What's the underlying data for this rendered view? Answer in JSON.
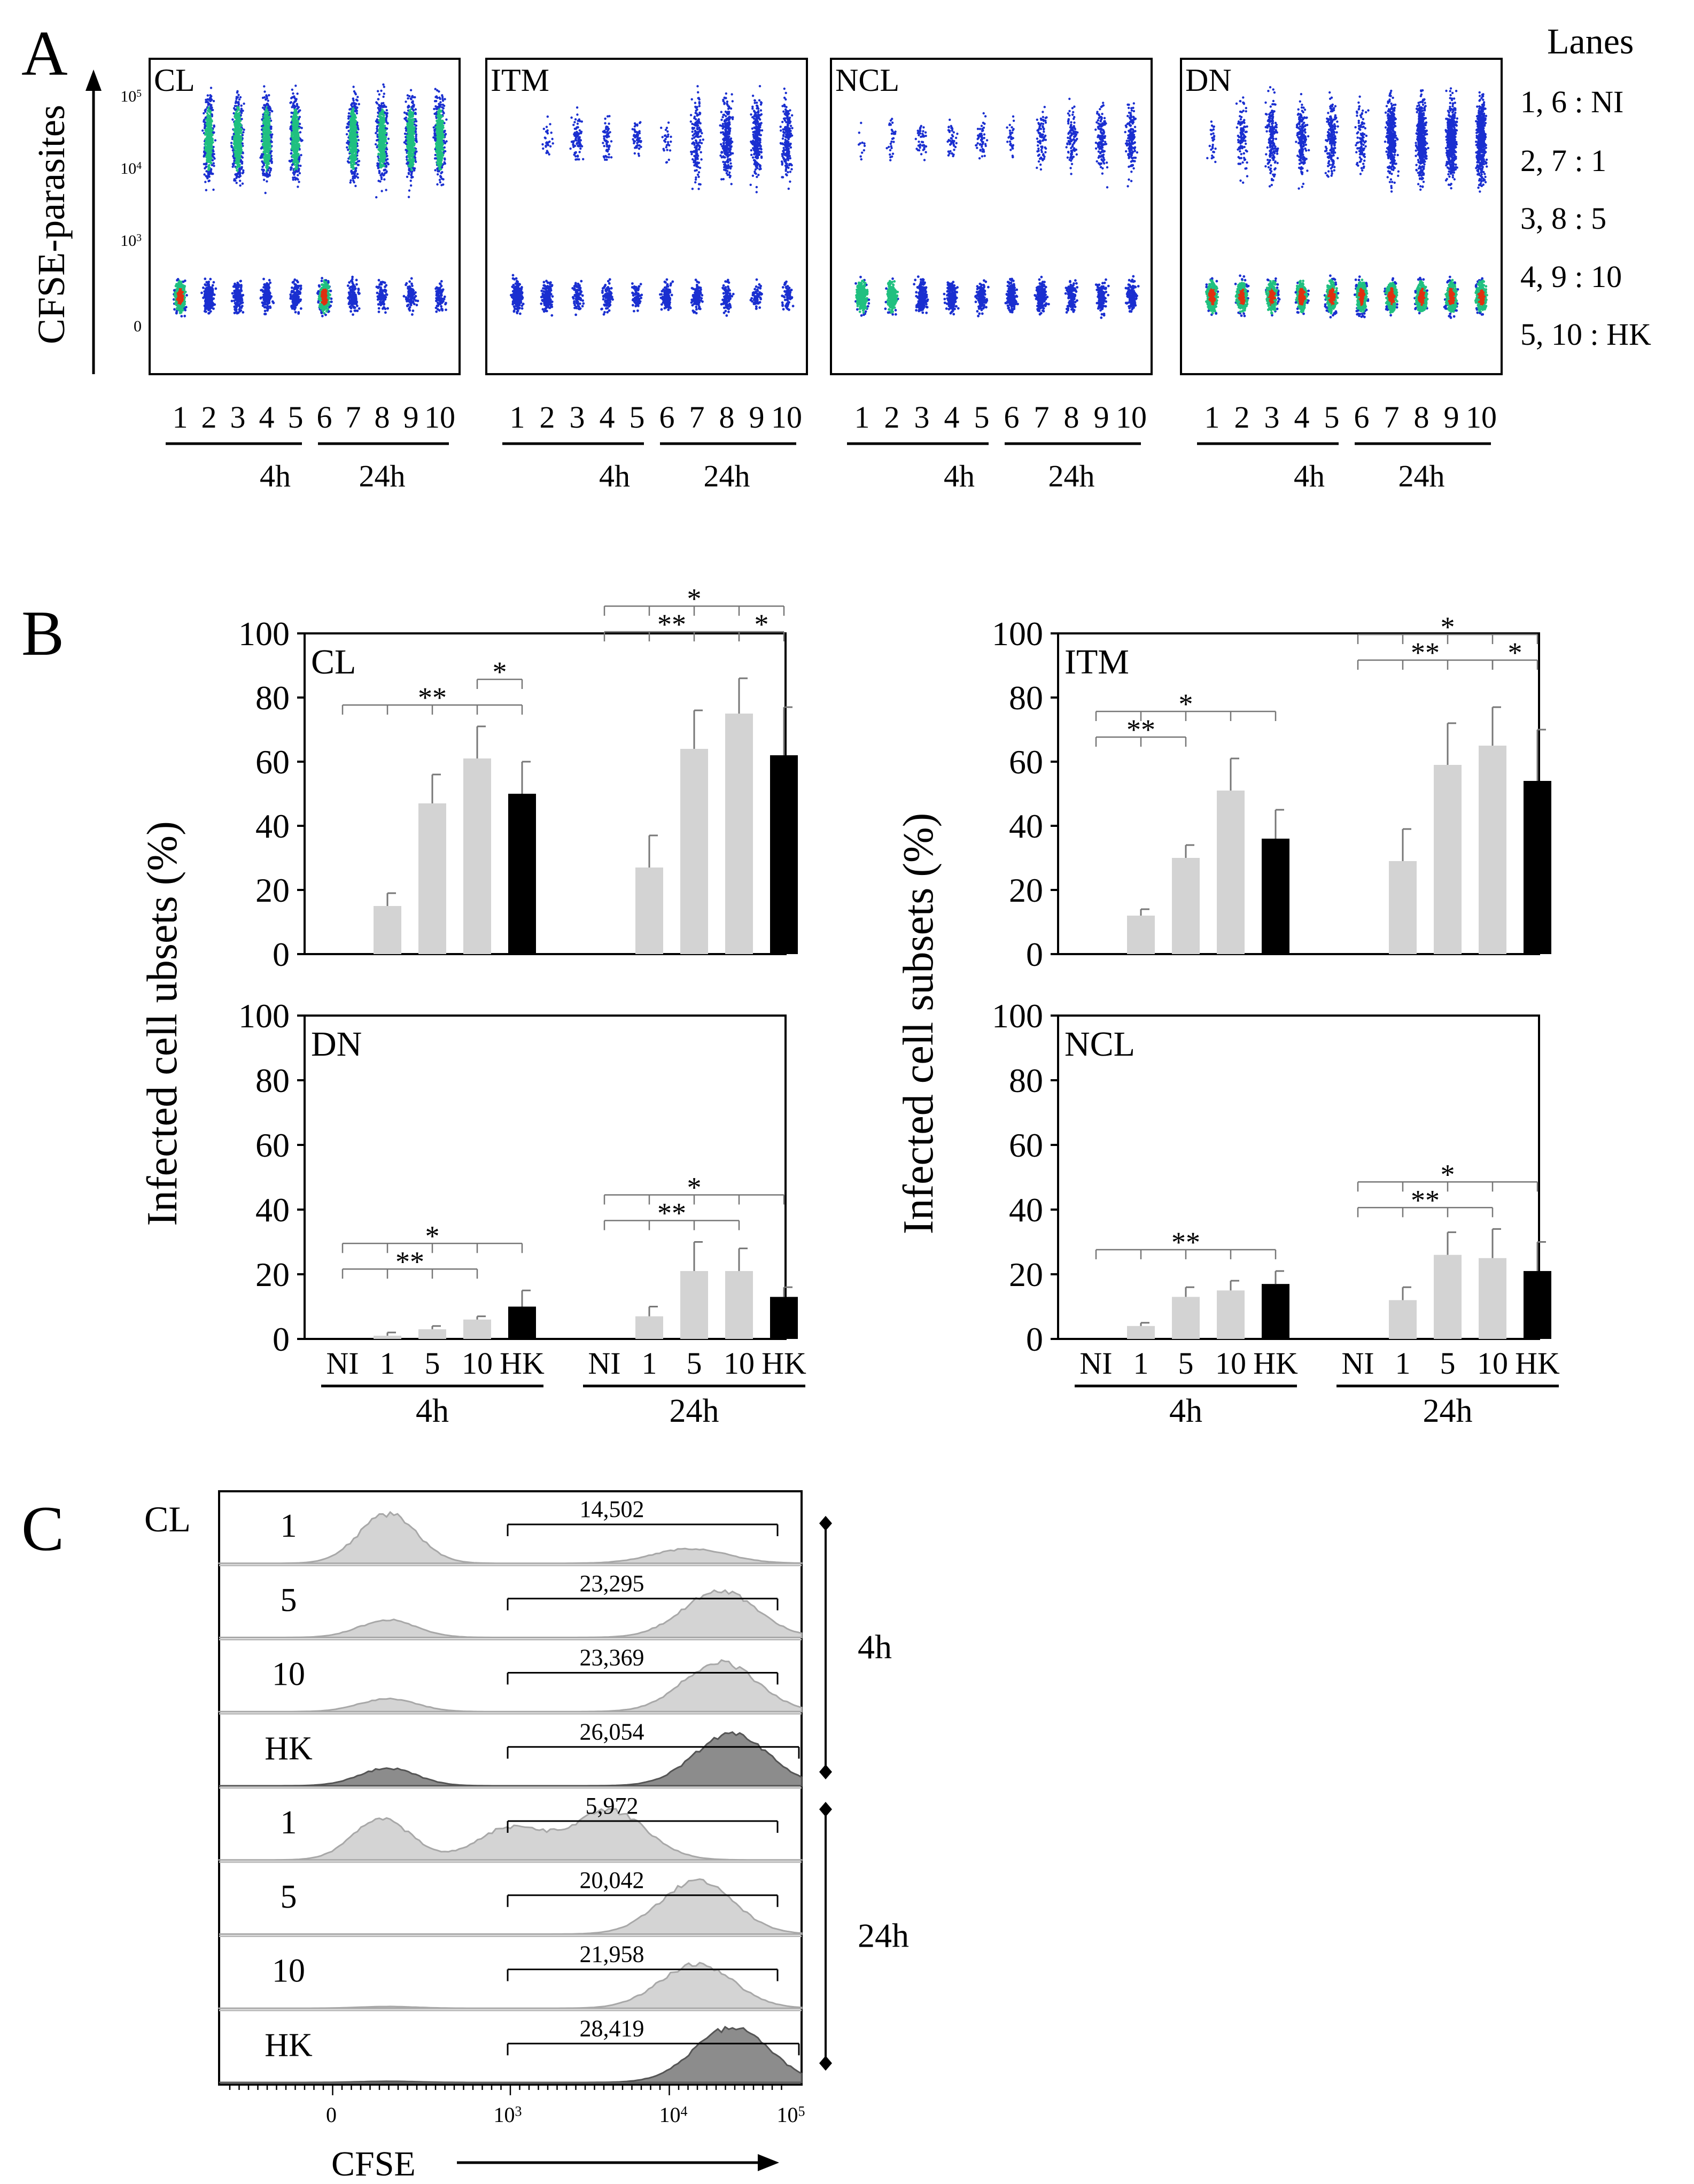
{
  "panel_letters": {
    "a": "A",
    "b": "B",
    "c": "C"
  },
  "chart_data": [
    {
      "id": "A",
      "type": "scatter",
      "description_axis": "flow cytometry dot plots",
      "ylabel": "CFSE-parasites",
      "y_tick_labels": [
        "0",
        "10",
        "10",
        "10"
      ],
      "y_tick_exponents": [
        "",
        "3",
        "4",
        "5"
      ],
      "subplots": [
        {
          "title": "CL",
          "lane_labels": [
            "1",
            "2",
            "3",
            "4",
            "5",
            "6",
            "7",
            "8",
            "9",
            "10"
          ]
        },
        {
          "title": "ITM",
          "lane_labels": [
            "1",
            "2",
            "3",
            "4",
            "5",
            "6",
            "7",
            "8",
            "9",
            "10"
          ]
        },
        {
          "title": "NCL",
          "lane_labels": [
            "1",
            "2",
            "3",
            "4",
            "5",
            "6",
            "7",
            "8",
            "9",
            "10"
          ]
        },
        {
          "title": "DN",
          "lane_labels": [
            "1",
            "2",
            "3",
            "4",
            "5",
            "6",
            "7",
            "8",
            "9",
            "10"
          ]
        }
      ],
      "group_labels": [
        "4h",
        "24h"
      ],
      "legend": {
        "title": "Lanes",
        "entries": [
          "1, 6 : NI",
          "2, 7 : 1",
          "3, 8 : 5",
          "4, 9 : 10",
          "5, 10 : HK"
        ]
      }
    },
    {
      "id": "B",
      "type": "bar",
      "ylim": [
        0,
        100
      ],
      "y_ticks": [
        "0",
        "20",
        "40",
        "60",
        "80",
        "100"
      ],
      "categories": [
        "NI",
        "1",
        "5",
        "10",
        "HK"
      ],
      "group_labels": [
        "4h",
        "24h"
      ],
      "ylabel_left": "Infected cell ubsets (%)",
      "ylabel_right": "Infected cell subsets (%)",
      "colors": {
        "dose": "#d3d3d3",
        "hk": "#000000"
      },
      "subplots": [
        {
          "title": "CL",
          "series": [
            {
              "name": "4h",
              "values": [
                0,
                15,
                47,
                61,
                50
              ],
              "errors": [
                0,
                4,
                9,
                10,
                10
              ]
            },
            {
              "name": "24h",
              "values": [
                0,
                27,
                64,
                75,
                62
              ],
              "errors": [
                0,
                10,
                12,
                11,
                15
              ]
            }
          ],
          "annotations": {
            "4h": [
              {
                "label": "**",
                "from": 0,
                "to": 4,
                "level": 0
              },
              {
                "label": "*",
                "from": 3,
                "to": 4,
                "level": 1
              }
            ],
            "24h": [
              {
                "label": "*",
                "from": 0,
                "to": 4,
                "level": 2
              },
              {
                "label": "**",
                "from": 0,
                "to": 3,
                "level": 1
              },
              {
                "label": "*",
                "from": 3,
                "to": 4,
                "level": 1
              }
            ]
          }
        },
        {
          "title": "ITM",
          "series": [
            {
              "name": "4h",
              "values": [
                0,
                12,
                30,
                51,
                36
              ],
              "errors": [
                0,
                2,
                4,
                10,
                9
              ]
            },
            {
              "name": "24h",
              "values": [
                0,
                29,
                59,
                65,
                54
              ],
              "errors": [
                0,
                10,
                13,
                12,
                16
              ]
            }
          ],
          "annotations": {
            "4h": [
              {
                "label": "*",
                "from": 0,
                "to": 4,
                "level": 1
              },
              {
                "label": "**",
                "from": 0,
                "to": 2,
                "level": 0
              }
            ],
            "24h": [
              {
                "label": "*",
                "from": 0,
                "to": 4,
                "level": 2
              },
              {
                "label": "**",
                "from": 0,
                "to": 3,
                "level": 1
              },
              {
                "label": "*",
                "from": 3,
                "to": 4,
                "level": 1
              }
            ]
          }
        },
        {
          "title": "DN",
          "series": [
            {
              "name": "4h",
              "values": [
                0,
                1,
                3,
                6,
                10
              ],
              "errors": [
                0,
                1,
                1,
                1,
                5
              ]
            },
            {
              "name": "24h",
              "values": [
                0,
                7,
                21,
                21,
                13
              ],
              "errors": [
                0,
                3,
                9,
                7,
                3
              ]
            }
          ],
          "annotations": {
            "4h": [
              {
                "label": "*",
                "from": 0,
                "to": 4,
                "level": 1
              },
              {
                "label": "**",
                "from": 0,
                "to": 3,
                "level": 0
              }
            ],
            "24h": [
              {
                "label": "*",
                "from": 0,
                "to": 4,
                "level": 1
              },
              {
                "label": "**",
                "from": 0,
                "to": 3,
                "level": 0
              }
            ]
          }
        },
        {
          "title": "NCL",
          "series": [
            {
              "name": "4h",
              "values": [
                0,
                4,
                13,
                15,
                17
              ],
              "errors": [
                0,
                1,
                3,
                3,
                4
              ]
            },
            {
              "name": "24h",
              "values": [
                0,
                12,
                26,
                25,
                21
              ],
              "errors": [
                0,
                4,
                7,
                9,
                9
              ]
            }
          ],
          "annotations": {
            "4h": [
              {
                "label": "**",
                "from": 0,
                "to": 4,
                "level": 0
              }
            ],
            "24h": [
              {
                "label": "*",
                "from": 0,
                "to": 4,
                "level": 1
              },
              {
                "label": "**",
                "from": 0,
                "to": 3,
                "level": 0
              }
            ]
          }
        }
      ]
    },
    {
      "id": "C",
      "type": "area",
      "description_axis": "CFSE histograms",
      "subset": "CL",
      "xlabel": "CFSE",
      "x_tick_labels": [
        "0",
        "10",
        "10",
        "10"
      ],
      "x_tick_exponents": [
        "",
        "3",
        "4",
        "5"
      ],
      "groups": [
        {
          "label": "4h",
          "rows": [
            {
              "label": "1",
              "value": "14,502"
            },
            {
              "label": "5",
              "value": "23,295"
            },
            {
              "label": "10",
              "value": "23,369"
            },
            {
              "label": "HK",
              "value": "26,054"
            }
          ]
        },
        {
          "label": "24h",
          "rows": [
            {
              "label": "1",
              "value": "5,972"
            },
            {
              "label": "5",
              "value": "20,042"
            },
            {
              "label": "10",
              "value": "21,958"
            },
            {
              "label": "HK",
              "value": "28,419"
            }
          ]
        }
      ]
    }
  ]
}
